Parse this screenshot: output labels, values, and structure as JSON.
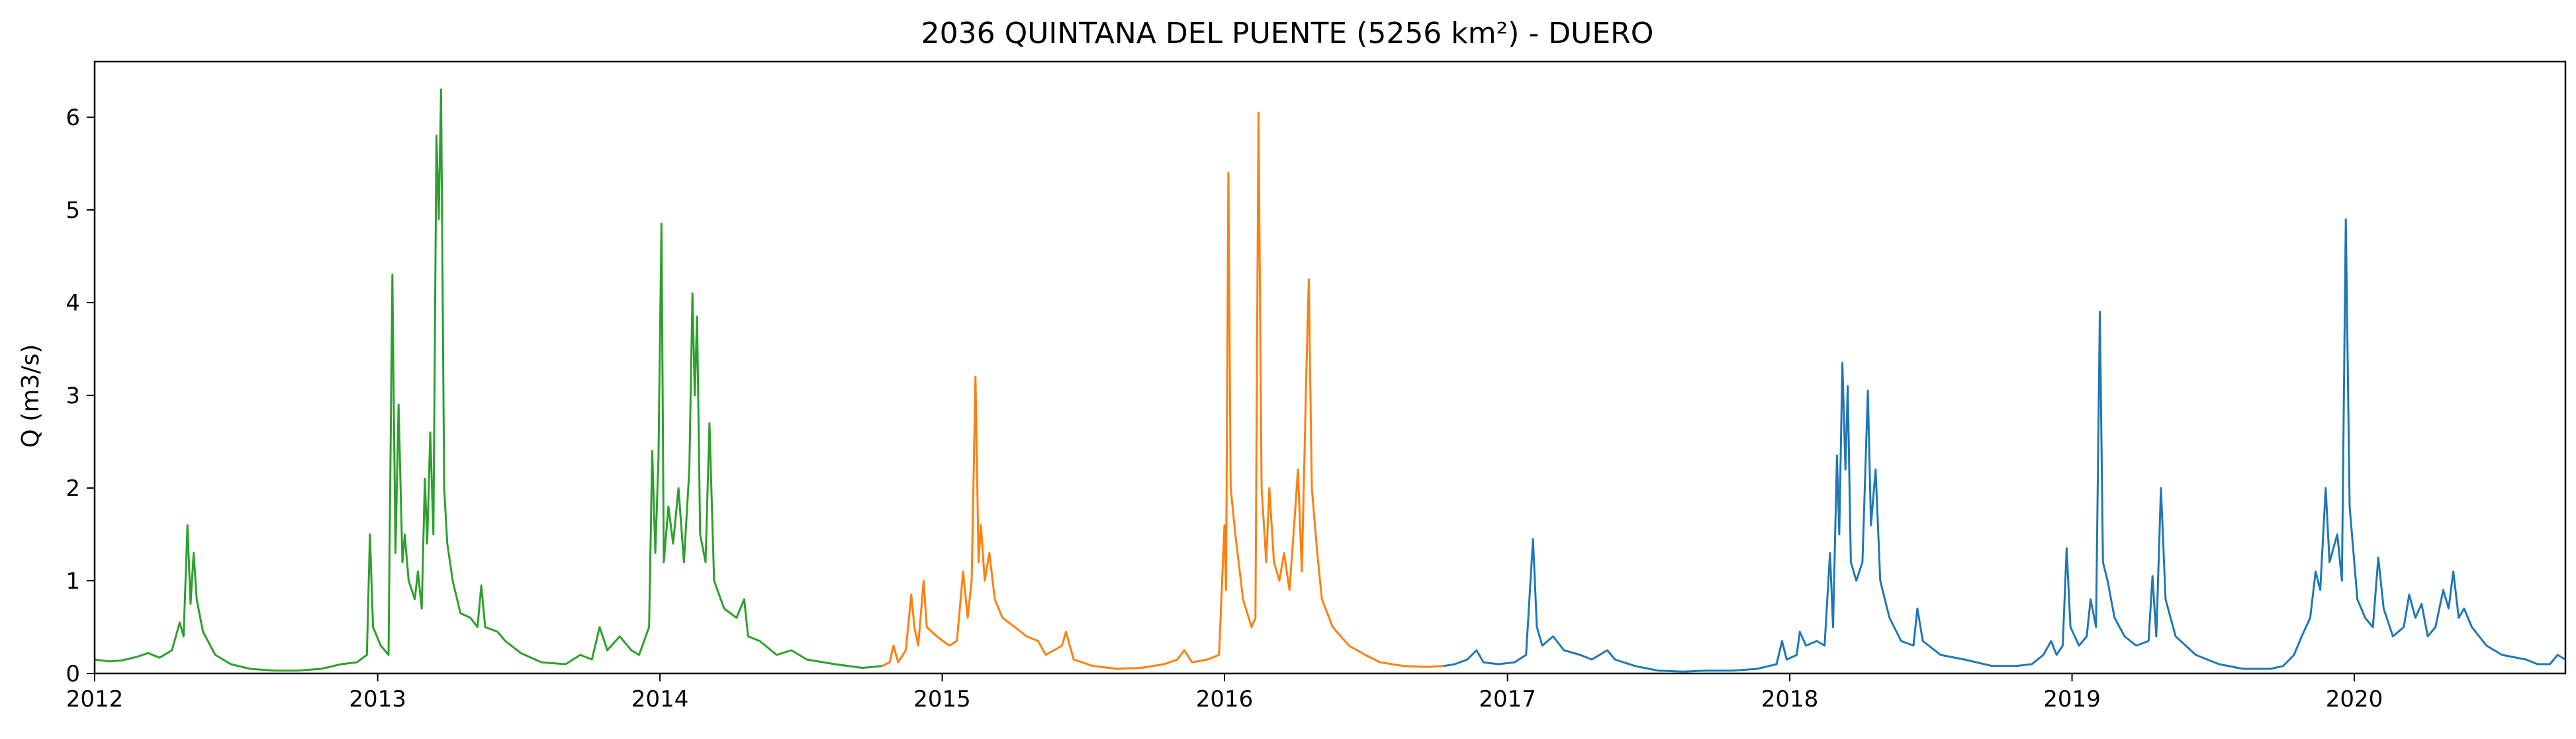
{
  "chart_data": {
    "type": "line",
    "title": "2036 QUINTANA DEL PUENTE (5256 km²) - DUERO",
    "xlabel": "",
    "ylabel": "Q (m3/s)",
    "xlim": [
      "2012-01-01",
      "2020-09-30"
    ],
    "ylim": [
      0,
      6.6
    ],
    "xticks": [
      "2012",
      "2013",
      "2014",
      "2015",
      "2016",
      "2017",
      "2018",
      "2019",
      "2020"
    ],
    "yticks": [
      "0",
      "1",
      "2",
      "3",
      "4",
      "5",
      "6"
    ],
    "grid": false,
    "legend": "none",
    "series": [
      {
        "color": "#2ca02c",
        "points": [
          [
            "2012-01-01",
            0.15
          ],
          [
            "2012-01-20",
            0.13
          ],
          [
            "2012-02-05",
            0.14
          ],
          [
            "2012-02-25",
            0.18
          ],
          [
            "2012-03-10",
            0.22
          ],
          [
            "2012-03-25",
            0.17
          ],
          [
            "2012-04-10",
            0.25
          ],
          [
            "2012-04-20",
            0.55
          ],
          [
            "2012-04-25",
            0.4
          ],
          [
            "2012-04-30",
            1.6
          ],
          [
            "2012-05-04",
            0.75
          ],
          [
            "2012-05-08",
            1.3
          ],
          [
            "2012-05-12",
            0.8
          ],
          [
            "2012-05-20",
            0.45
          ],
          [
            "2012-06-05",
            0.2
          ],
          [
            "2012-06-25",
            0.1
          ],
          [
            "2012-07-20",
            0.05
          ],
          [
            "2012-08-20",
            0.03
          ],
          [
            "2012-09-20",
            0.03
          ],
          [
            "2012-10-20",
            0.05
          ],
          [
            "2012-11-15",
            0.1
          ],
          [
            "2012-12-05",
            0.12
          ],
          [
            "2012-12-18",
            0.2
          ],
          [
            "2012-12-22",
            1.5
          ],
          [
            "2012-12-26",
            0.5
          ],
          [
            "2013-01-05",
            0.3
          ],
          [
            "2013-01-15",
            0.2
          ],
          [
            "2013-01-20",
            4.3
          ],
          [
            "2013-01-24",
            1.3
          ],
          [
            "2013-01-28",
            2.9
          ],
          [
            "2013-02-02",
            1.2
          ],
          [
            "2013-02-05",
            1.5
          ],
          [
            "2013-02-10",
            1.0
          ],
          [
            "2013-02-18",
            0.8
          ],
          [
            "2013-02-22",
            1.1
          ],
          [
            "2013-02-27",
            0.7
          ],
          [
            "2013-03-03",
            2.1
          ],
          [
            "2013-03-06",
            1.4
          ],
          [
            "2013-03-10",
            2.6
          ],
          [
            "2013-03-14",
            1.5
          ],
          [
            "2013-03-18",
            5.8
          ],
          [
            "2013-03-21",
            4.9
          ],
          [
            "2013-03-24",
            6.3
          ],
          [
            "2013-03-28",
            2.0
          ],
          [
            "2013-04-01",
            1.4
          ],
          [
            "2013-04-08",
            1.0
          ],
          [
            "2013-04-18",
            0.65
          ],
          [
            "2013-05-01",
            0.6
          ],
          [
            "2013-05-10",
            0.5
          ],
          [
            "2013-05-15",
            0.95
          ],
          [
            "2013-05-20",
            0.5
          ],
          [
            "2013-06-05",
            0.45
          ],
          [
            "2013-06-15",
            0.35
          ],
          [
            "2013-07-05",
            0.22
          ],
          [
            "2013-08-01",
            0.12
          ],
          [
            "2013-09-01",
            0.1
          ],
          [
            "2013-09-20",
            0.2
          ],
          [
            "2013-10-05",
            0.15
          ],
          [
            "2013-10-15",
            0.5
          ],
          [
            "2013-10-25",
            0.25
          ],
          [
            "2013-11-10",
            0.4
          ],
          [
            "2013-11-25",
            0.25
          ],
          [
            "2013-12-05",
            0.2
          ],
          [
            "2013-12-18",
            0.5
          ],
          [
            "2013-12-22",
            2.4
          ],
          [
            "2013-12-26",
            1.3
          ],
          [
            "2013-12-30",
            2.3
          ],
          [
            "2014-01-03",
            4.85
          ],
          [
            "2014-01-06",
            1.2
          ],
          [
            "2014-01-12",
            1.8
          ],
          [
            "2014-01-18",
            1.4
          ],
          [
            "2014-01-25",
            2.0
          ],
          [
            "2014-02-01",
            1.2
          ],
          [
            "2014-02-08",
            2.2
          ],
          [
            "2014-02-12",
            4.1
          ],
          [
            "2014-02-15",
            3.0
          ],
          [
            "2014-02-18",
            3.85
          ],
          [
            "2014-02-22",
            1.5
          ],
          [
            "2014-03-01",
            1.2
          ],
          [
            "2014-03-06",
            2.7
          ],
          [
            "2014-03-12",
            1.0
          ],
          [
            "2014-03-25",
            0.7
          ],
          [
            "2014-04-10",
            0.6
          ],
          [
            "2014-04-20",
            0.8
          ],
          [
            "2014-04-25",
            0.4
          ],
          [
            "2014-05-10",
            0.35
          ],
          [
            "2014-06-01",
            0.2
          ],
          [
            "2014-06-20",
            0.25
          ],
          [
            "2014-07-10",
            0.15
          ],
          [
            "2014-08-15",
            0.1
          ],
          [
            "2014-09-20",
            0.06
          ],
          [
            "2014-10-15",
            0.08
          ]
        ]
      },
      {
        "color": "#ff7f0e",
        "points": [
          [
            "2014-10-15",
            0.08
          ],
          [
            "2014-10-25",
            0.12
          ],
          [
            "2014-10-30",
            0.3
          ],
          [
            "2014-11-05",
            0.12
          ],
          [
            "2014-11-15",
            0.25
          ],
          [
            "2014-11-22",
            0.85
          ],
          [
            "2014-11-26",
            0.5
          ],
          [
            "2014-12-01",
            0.3
          ],
          [
            "2014-12-08",
            1.0
          ],
          [
            "2014-12-12",
            0.5
          ],
          [
            "2014-12-25",
            0.4
          ],
          [
            "2015-01-10",
            0.3
          ],
          [
            "2015-01-20",
            0.35
          ],
          [
            "2015-01-28",
            1.1
          ],
          [
            "2015-02-03",
            0.6
          ],
          [
            "2015-02-08",
            1.0
          ],
          [
            "2015-02-13",
            3.2
          ],
          [
            "2015-02-17",
            1.2
          ],
          [
            "2015-02-20",
            1.6
          ],
          [
            "2015-02-25",
            1.0
          ],
          [
            "2015-03-03",
            1.3
          ],
          [
            "2015-03-10",
            0.8
          ],
          [
            "2015-03-20",
            0.6
          ],
          [
            "2015-04-05",
            0.5
          ],
          [
            "2015-04-20",
            0.4
          ],
          [
            "2015-05-05",
            0.35
          ],
          [
            "2015-05-15",
            0.2
          ],
          [
            "2015-06-05",
            0.3
          ],
          [
            "2015-06-10",
            0.45
          ],
          [
            "2015-06-20",
            0.15
          ],
          [
            "2015-07-15",
            0.08
          ],
          [
            "2015-08-15",
            0.05
          ],
          [
            "2015-09-15",
            0.06
          ],
          [
            "2015-10-15",
            0.1
          ],
          [
            "2015-11-01",
            0.15
          ],
          [
            "2015-11-10",
            0.25
          ],
          [
            "2015-11-20",
            0.12
          ],
          [
            "2015-12-10",
            0.15
          ],
          [
            "2015-12-25",
            0.2
          ],
          [
            "2016-01-01",
            1.6
          ],
          [
            "2016-01-03",
            0.9
          ],
          [
            "2016-01-06",
            5.4
          ],
          [
            "2016-01-09",
            2.0
          ],
          [
            "2016-01-15",
            1.5
          ],
          [
            "2016-01-25",
            0.8
          ],
          [
            "2016-02-05",
            0.5
          ],
          [
            "2016-02-10",
            0.6
          ],
          [
            "2016-02-14",
            6.05
          ],
          [
            "2016-02-18",
            2.0
          ],
          [
            "2016-02-24",
            1.2
          ],
          [
            "2016-02-28",
            2.0
          ],
          [
            "2016-03-05",
            1.2
          ],
          [
            "2016-03-12",
            1.0
          ],
          [
            "2016-03-18",
            1.3
          ],
          [
            "2016-03-25",
            0.9
          ],
          [
            "2016-04-01",
            1.7
          ],
          [
            "2016-04-05",
            2.2
          ],
          [
            "2016-04-10",
            1.1
          ],
          [
            "2016-04-16",
            3.3
          ],
          [
            "2016-04-19",
            4.25
          ],
          [
            "2016-04-23",
            2.0
          ],
          [
            "2016-04-30",
            1.3
          ],
          [
            "2016-05-06",
            0.8
          ],
          [
            "2016-05-20",
            0.5
          ],
          [
            "2016-06-10",
            0.3
          ],
          [
            "2016-07-01",
            0.2
          ],
          [
            "2016-07-20",
            0.12
          ],
          [
            "2016-08-20",
            0.08
          ],
          [
            "2016-09-20",
            0.07
          ],
          [
            "2016-10-10",
            0.08
          ]
        ]
      },
      {
        "color": "#1f77b4",
        "points": [
          [
            "2016-10-10",
            0.08
          ],
          [
            "2016-10-25",
            0.1
          ],
          [
            "2016-11-10",
            0.15
          ],
          [
            "2016-11-22",
            0.25
          ],
          [
            "2016-12-01",
            0.12
          ],
          [
            "2016-12-20",
            0.1
          ],
          [
            "2017-01-10",
            0.12
          ],
          [
            "2017-01-25",
            0.2
          ],
          [
            "2017-02-03",
            1.45
          ],
          [
            "2017-02-08",
            0.5
          ],
          [
            "2017-02-15",
            0.3
          ],
          [
            "2017-03-01",
            0.4
          ],
          [
            "2017-03-15",
            0.25
          ],
          [
            "2017-04-05",
            0.2
          ],
          [
            "2017-04-20",
            0.15
          ],
          [
            "2017-05-10",
            0.25
          ],
          [
            "2017-05-20",
            0.15
          ],
          [
            "2017-06-15",
            0.08
          ],
          [
            "2017-07-15",
            0.03
          ],
          [
            "2017-08-15",
            0.02
          ],
          [
            "2017-09-15",
            0.03
          ],
          [
            "2017-10-20",
            0.03
          ],
          [
            "2017-11-20",
            0.05
          ],
          [
            "2017-12-15",
            0.1
          ],
          [
            "2017-12-22",
            0.35
          ],
          [
            "2017-12-28",
            0.15
          ],
          [
            "2018-01-10",
            0.2
          ],
          [
            "2018-01-14",
            0.45
          ],
          [
            "2018-01-22",
            0.3
          ],
          [
            "2018-02-05",
            0.35
          ],
          [
            "2018-02-15",
            0.3
          ],
          [
            "2018-02-22",
            1.3
          ],
          [
            "2018-02-26",
            0.5
          ],
          [
            "2018-03-03",
            2.35
          ],
          [
            "2018-03-06",
            1.5
          ],
          [
            "2018-03-10",
            3.35
          ],
          [
            "2018-03-14",
            2.2
          ],
          [
            "2018-03-17",
            3.1
          ],
          [
            "2018-03-21",
            1.2
          ],
          [
            "2018-03-28",
            1.0
          ],
          [
            "2018-04-05",
            1.2
          ],
          [
            "2018-04-12",
            3.05
          ],
          [
            "2018-04-16",
            1.6
          ],
          [
            "2018-04-22",
            2.2
          ],
          [
            "2018-04-28",
            1.0
          ],
          [
            "2018-05-10",
            0.6
          ],
          [
            "2018-05-25",
            0.35
          ],
          [
            "2018-06-10",
            0.3
          ],
          [
            "2018-06-15",
            0.7
          ],
          [
            "2018-06-22",
            0.35
          ],
          [
            "2018-07-15",
            0.2
          ],
          [
            "2018-08-15",
            0.15
          ],
          [
            "2018-09-20",
            0.08
          ],
          [
            "2018-10-20",
            0.08
          ],
          [
            "2018-11-10",
            0.1
          ],
          [
            "2018-11-25",
            0.2
          ],
          [
            "2018-12-05",
            0.35
          ],
          [
            "2018-12-12",
            0.2
          ],
          [
            "2018-12-20",
            0.3
          ],
          [
            "2018-12-25",
            1.35
          ],
          [
            "2018-12-30",
            0.5
          ],
          [
            "2019-01-10",
            0.3
          ],
          [
            "2019-01-20",
            0.4
          ],
          [
            "2019-01-25",
            0.8
          ],
          [
            "2019-02-01",
            0.5
          ],
          [
            "2019-02-06",
            3.9
          ],
          [
            "2019-02-10",
            1.2
          ],
          [
            "2019-02-16",
            1.0
          ],
          [
            "2019-02-25",
            0.6
          ],
          [
            "2019-03-10",
            0.4
          ],
          [
            "2019-03-25",
            0.3
          ],
          [
            "2019-04-10",
            0.35
          ],
          [
            "2019-04-15",
            1.05
          ],
          [
            "2019-04-20",
            0.4
          ],
          [
            "2019-04-26",
            2.0
          ],
          [
            "2019-05-02",
            0.8
          ],
          [
            "2019-05-15",
            0.4
          ],
          [
            "2019-06-10",
            0.2
          ],
          [
            "2019-07-10",
            0.1
          ],
          [
            "2019-08-10",
            0.05
          ],
          [
            "2019-09-15",
            0.05
          ],
          [
            "2019-10-01",
            0.08
          ],
          [
            "2019-10-15",
            0.2
          ],
          [
            "2019-10-25",
            0.4
          ],
          [
            "2019-11-05",
            0.6
          ],
          [
            "2019-11-12",
            1.1
          ],
          [
            "2019-11-18",
            0.9
          ],
          [
            "2019-11-25",
            2.0
          ],
          [
            "2019-11-30",
            1.2
          ],
          [
            "2019-12-10",
            1.5
          ],
          [
            "2019-12-16",
            1.0
          ],
          [
            "2019-12-21",
            4.9
          ],
          [
            "2019-12-26",
            1.8
          ],
          [
            "2020-01-05",
            0.8
          ],
          [
            "2020-01-15",
            0.6
          ],
          [
            "2020-01-25",
            0.5
          ],
          [
            "2020-02-01",
            1.25
          ],
          [
            "2020-02-08",
            0.7
          ],
          [
            "2020-02-20",
            0.4
          ],
          [
            "2020-03-05",
            0.5
          ],
          [
            "2020-03-12",
            0.85
          ],
          [
            "2020-03-20",
            0.6
          ],
          [
            "2020-03-28",
            0.75
          ],
          [
            "2020-04-05",
            0.4
          ],
          [
            "2020-04-15",
            0.5
          ],
          [
            "2020-04-25",
            0.9
          ],
          [
            "2020-05-02",
            0.7
          ],
          [
            "2020-05-08",
            1.1
          ],
          [
            "2020-05-15",
            0.6
          ],
          [
            "2020-05-22",
            0.7
          ],
          [
            "2020-06-01",
            0.5
          ],
          [
            "2020-06-20",
            0.3
          ],
          [
            "2020-07-10",
            0.2
          ],
          [
            "2020-08-10",
            0.15
          ],
          [
            "2020-08-25",
            0.1
          ],
          [
            "2020-09-10",
            0.1
          ],
          [
            "2020-09-20",
            0.2
          ],
          [
            "2020-09-30",
            0.15
          ]
        ]
      }
    ]
  }
}
